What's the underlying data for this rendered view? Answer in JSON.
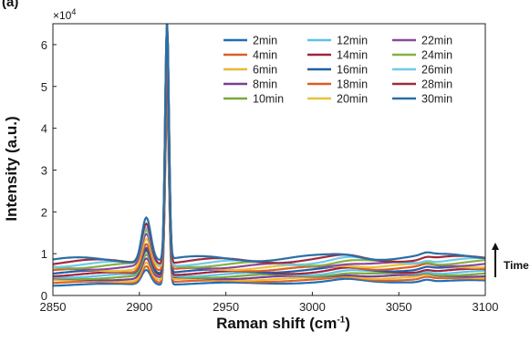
{
  "panel_label": "(a)",
  "exponent": {
    "base": "×10",
    "power": "4"
  },
  "annotation": {
    "label": "Time"
  },
  "chart_data": {
    "type": "line",
    "title": "",
    "xlabel": "Raman shift (cm",
    "xlabel_sup": "-1",
    "xlabel_close": ")",
    "ylabel": "Intensity (a.u.)",
    "xlim": [
      2850,
      3100
    ],
    "ylim": [
      0,
      65000
    ],
    "xticks": [
      2850,
      2900,
      2950,
      3000,
      3050,
      3100
    ],
    "yticks": [
      0,
      10000,
      20000,
      30000,
      40000,
      50000,
      60000
    ],
    "ytick_labels": [
      "0",
      "1",
      "2",
      "3",
      "4",
      "5",
      "6"
    ],
    "grid": false,
    "legend_position": "top-right",
    "peaks": [
      {
        "x": 2904,
        "max_y": 19000
      },
      {
        "x": 2916,
        "max_y": 65000
      }
    ],
    "series": [
      {
        "name": "2min",
        "color": "#1f6fb5",
        "baseline": 2500,
        "peak1": 6000,
        "peak2": 46000
      },
      {
        "name": "4min",
        "color": "#d9602a",
        "baseline": 3000,
        "peak1": 7000,
        "peak2": 47000
      },
      {
        "name": "6min",
        "color": "#e8b83a",
        "baseline": 3400,
        "peak1": 7800,
        "peak2": 48000
      },
      {
        "name": "8min",
        "color": "#7a3f91",
        "baseline": 3800,
        "peak1": 8500,
        "peak2": 49000
      },
      {
        "name": "10min",
        "color": "#79a83b",
        "baseline": 4200,
        "peak1": 9200,
        "peak2": 50000
      },
      {
        "name": "12min",
        "color": "#5cc2e6",
        "baseline": 4600,
        "peak1": 10000,
        "peak2": 52000
      },
      {
        "name": "14min",
        "color": "#a3233a",
        "baseline": 5000,
        "peak1": 10800,
        "peak2": 54000
      },
      {
        "name": "16min",
        "color": "#1e5fa8",
        "baseline": 5400,
        "peak1": 11600,
        "peak2": 56000
      },
      {
        "name": "18min",
        "color": "#e05a25",
        "baseline": 5800,
        "peak1": 12400,
        "peak2": 58000
      },
      {
        "name": "20min",
        "color": "#e7c23a",
        "baseline": 6200,
        "peak1": 13200,
        "peak2": 65000
      },
      {
        "name": "22min",
        "color": "#8a4a9c",
        "baseline": 6600,
        "peak1": 14000,
        "peak2": 65000
      },
      {
        "name": "24min",
        "color": "#86b043",
        "baseline": 7000,
        "peak1": 15000,
        "peak2": 65000
      },
      {
        "name": "26min",
        "color": "#6fcbe8",
        "baseline": 7400,
        "peak1": 16000,
        "peak2": 65000
      },
      {
        "name": "28min",
        "color": "#a02a3c",
        "baseline": 7900,
        "peak1": 17500,
        "peak2": 65000
      },
      {
        "name": "30min",
        "color": "#2a6ea6",
        "baseline": 8400,
        "peak1": 19000,
        "peak2": 65000
      }
    ]
  }
}
